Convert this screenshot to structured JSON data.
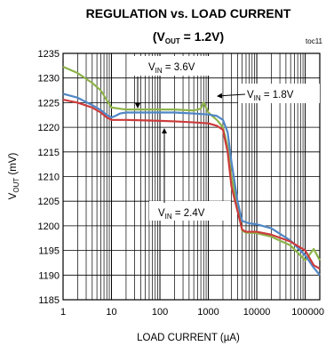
{
  "chart_data": {
    "type": "line",
    "title_line1": "REGULATION vs. LOAD CURRENT",
    "title_line2": {
      "prefix": "(V",
      "sub": "OUT",
      "suffix": " = 1.2V)"
    },
    "figure_id": "toc11",
    "ylabel": {
      "main": "V",
      "sub": "OUT",
      "rest": " (mV)"
    },
    "xlabel": "LOAD CURRENT (µA)",
    "x_scale": "log",
    "xlim": [
      1,
      200000
    ],
    "ylim": [
      1185,
      1235
    ],
    "x_ticks": [
      1,
      10,
      100,
      1000,
      10000,
      100000
    ],
    "x_tick_labels": [
      "1",
      "10",
      "100",
      "1000",
      "10000",
      "100000"
    ],
    "y_ticks": [
      1185,
      1190,
      1195,
      1200,
      1205,
      1210,
      1215,
      1220,
      1225,
      1230,
      1235
    ],
    "y_tick_labels": [
      "1185",
      "1190",
      "1195",
      "1200",
      "1205",
      "1210",
      "1215",
      "1220",
      "1225",
      "1230",
      "1235"
    ],
    "grid": true,
    "series": [
      {
        "name": "VIN = 3.6V",
        "color": "#8db34a",
        "x": [
          1,
          2,
          4,
          6,
          8,
          10,
          20,
          50,
          100,
          200,
          500,
          700,
          800,
          1000,
          1200,
          1500,
          2000,
          2500,
          3000,
          4000,
          5000,
          6000,
          7000,
          8000,
          10000,
          20000,
          50000,
          100000,
          150000,
          200000
        ],
        "y": [
          1232.3,
          1231,
          1229,
          1227.5,
          1225.5,
          1224,
          1223.6,
          1223.6,
          1223.6,
          1223.6,
          1223.4,
          1223.8,
          1225,
          1223,
          1222.3,
          1221.5,
          1220,
          1216,
          1210,
          1204,
          1199,
          1198.6,
          1198.6,
          1198.6,
          1198.5,
          1197.8,
          1196,
          1193,
          1195.3,
          1193
        ]
      },
      {
        "name": "VIN = 1.8V",
        "color": "#4f86c6",
        "x": [
          1,
          2,
          4,
          6,
          8,
          10,
          12,
          15,
          20,
          50,
          100,
          200,
          500,
          1000,
          1500,
          2000,
          2500,
          3000,
          4000,
          5000,
          7000,
          10000,
          20000,
          50000,
          100000,
          150000,
          200000
        ],
        "y": [
          1226.8,
          1226,
          1224.5,
          1223.5,
          1222.5,
          1222,
          1222.3,
          1222.8,
          1223,
          1223,
          1223,
          1223,
          1222.8,
          1222.6,
          1222.3,
          1221.5,
          1219,
          1213,
          1205,
          1201,
          1200.5,
          1200.3,
          1199.5,
          1197,
          1194,
          1191.5,
          1190
        ]
      },
      {
        "name": "VIN = 2.4V",
        "color": "#cc3b3b",
        "x": [
          1,
          2,
          4,
          6,
          8,
          10,
          20,
          50,
          100,
          200,
          500,
          1000,
          1500,
          2000,
          2500,
          3000,
          4000,
          5000,
          6000,
          7000,
          10000,
          20000,
          50000,
          100000,
          150000,
          200000
        ],
        "y": [
          1225.6,
          1225,
          1224,
          1223,
          1222,
          1221.5,
          1221.5,
          1221.4,
          1221.3,
          1221.2,
          1221,
          1220.8,
          1220.3,
          1219.5,
          1215,
          1208,
          1203,
          1199.2,
          1198.8,
          1198.8,
          1198.8,
          1198.2,
          1196.8,
          1195,
          1192,
          1191.3
        ]
      }
    ],
    "annotations": [
      {
        "label_main": "V",
        "label_sub": "IN",
        "label_rest": " = 3.6V",
        "series_index": 0
      },
      {
        "label_main": "V",
        "label_sub": "IN",
        "label_rest": " = 1.8V",
        "series_index": 1
      },
      {
        "label_main": "V",
        "label_sub": "IN",
        "label_rest": " = 2.4V",
        "series_index": 2
      }
    ]
  }
}
